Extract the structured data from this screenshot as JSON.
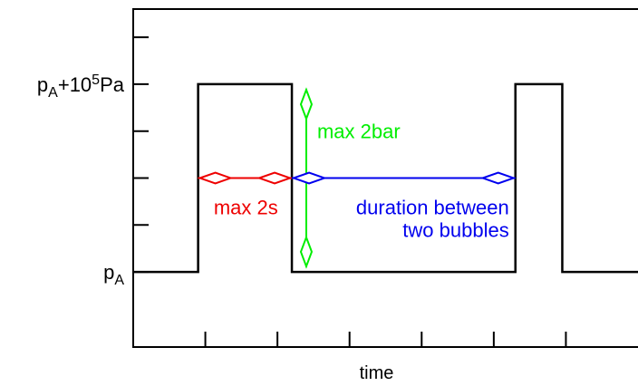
{
  "chart_data": {
    "type": "line",
    "title": "",
    "xlabel": "time",
    "ylabel": "",
    "grid": false,
    "xlim": [
      0,
      7
    ],
    "ylim": [
      -0.8,
      2.8
    ],
    "x_ticks": [
      1,
      2,
      3,
      4,
      5,
      6
    ],
    "y_ticks": [
      {
        "value": 0,
        "label_base": "p",
        "label_sub": "A",
        "label_rest": "",
        "label_sup": "",
        "label_tail": ""
      },
      {
        "value": 0.5,
        "label_base": "",
        "label_sub": "",
        "label_rest": "",
        "label_sup": "",
        "label_tail": ""
      },
      {
        "value": 1.0,
        "label_base": "",
        "label_sub": "",
        "label_rest": "",
        "label_sup": "",
        "label_tail": ""
      },
      {
        "value": 1.5,
        "label_base": "",
        "label_sub": "",
        "label_rest": "",
        "label_sup": "",
        "label_tail": ""
      },
      {
        "value": 2.0,
        "label_base": "p",
        "label_sub": "A",
        "label_rest": "+10",
        "label_sup": "5",
        "label_tail": "Pa"
      },
      {
        "value": 2.5,
        "label_base": "",
        "label_sub": "",
        "label_rest": "",
        "label_sup": "",
        "label_tail": ""
      }
    ],
    "series": [
      {
        "color": "#000000",
        "x": [
          0,
          0.9,
          0.9,
          2.2,
          2.2,
          5.3,
          5.3,
          5.95,
          5.95,
          7.0
        ],
        "y": [
          0,
          0,
          2,
          2,
          0,
          0,
          2,
          2,
          0,
          0
        ]
      }
    ],
    "annotations": [
      {
        "text": "max 2bar",
        "color": "#00ee00",
        "kind": "vertical-arrow",
        "x": 2.4,
        "y_from": 0.05,
        "y_to": 1.95
      },
      {
        "text": "max 2s",
        "color": "#ee0000",
        "kind": "horizontal-arrow",
        "y": 1.0,
        "x_from": 0.9,
        "x_to": 2.2
      },
      {
        "text": "duration between\ntwo bubbles",
        "color": "#0000ee",
        "kind": "horizontal-arrow",
        "y": 1.0,
        "x_from": 2.2,
        "x_to": 5.3
      }
    ]
  }
}
